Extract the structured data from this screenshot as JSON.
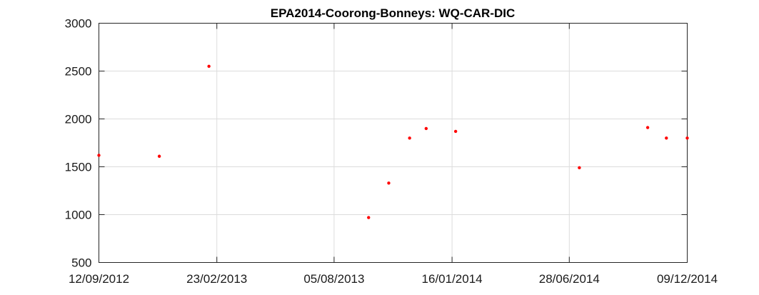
{
  "chart_data": {
    "type": "scatter",
    "title": "EPA2014-Coorong-Bonneys: WQ-CAR-DIC",
    "xlabel": "",
    "ylabel": "",
    "x_type": "date",
    "xlim": [
      "2012-09-12",
      "2014-12-09"
    ],
    "ylim": [
      500,
      3000
    ],
    "x_ticks": [
      "2012-09-12",
      "2013-02-23",
      "2013-08-05",
      "2014-01-16",
      "2014-06-28",
      "2014-12-09"
    ],
    "x_tick_labels": [
      "12/09/2012",
      "23/02/2013",
      "05/08/2013",
      "16/01/2014",
      "28/06/2014",
      "09/12/2014"
    ],
    "y_ticks": [
      500,
      1000,
      1500,
      2000,
      2500,
      3000
    ],
    "y_tick_labels": [
      "500",
      "1000",
      "1500",
      "2000",
      "2500",
      "3000"
    ],
    "grid": true,
    "marker_color": "#ff0000",
    "series": [
      {
        "points": [
          {
            "x": "2012-09-12",
            "y": 1620
          },
          {
            "x": "2012-12-05",
            "y": 1610
          },
          {
            "x": "2013-02-12",
            "y": 2550
          },
          {
            "x": "2013-09-22",
            "y": 970
          },
          {
            "x": "2013-10-20",
            "y": 1330
          },
          {
            "x": "2013-11-18",
            "y": 1800
          },
          {
            "x": "2013-12-11",
            "y": 1900
          },
          {
            "x": "2014-01-21",
            "y": 1870
          },
          {
            "x": "2014-07-12",
            "y": 1490
          },
          {
            "x": "2014-10-15",
            "y": 1910
          },
          {
            "x": "2014-11-10",
            "y": 1800
          },
          {
            "x": "2014-12-09",
            "y": 1800
          }
        ]
      }
    ]
  }
}
